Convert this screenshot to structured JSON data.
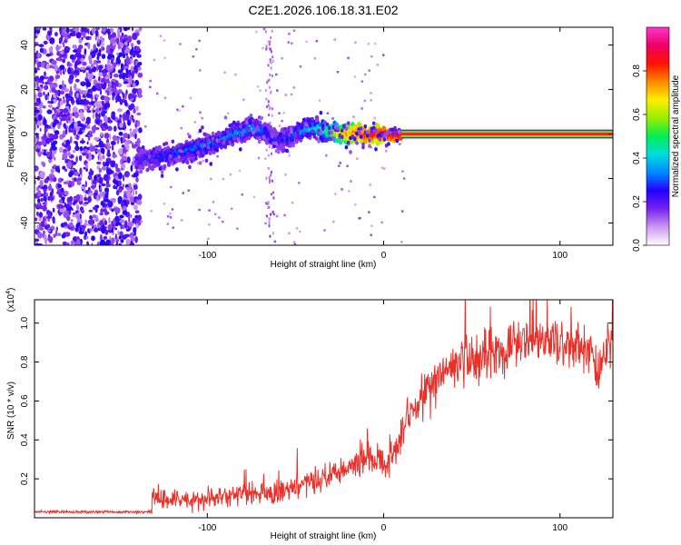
{
  "title": "C2E1.2026.106.18.31.E02",
  "chart_data": [
    {
      "type": "heatmap",
      "title": "C2E1.2026.106.18.31.E02",
      "xlabel": "Height of straight line (km)",
      "ylabel": "Frequency (Hz)",
      "xlim": [
        -198,
        130
      ],
      "ylim": [
        -50,
        48
      ],
      "xticks": [
        -100,
        0,
        100
      ],
      "xtick_labels": [
        "-100",
        "0",
        "100"
      ],
      "yticks": [
        -40,
        -20,
        0,
        20,
        40
      ],
      "ytick_labels": [
        "-40",
        "-20",
        "0",
        "20",
        "40"
      ],
      "colorbar": {
        "label": "Normalized spectral amplitude",
        "range": [
          0,
          1
        ],
        "ticks": [
          0.0,
          0.2,
          0.4,
          0.6,
          0.8
        ],
        "tick_labels": [
          "0.0",
          "0.2",
          "0.4",
          "0.6",
          "0.8"
        ],
        "colors": [
          "#ffffff",
          "#cc99ee",
          "#7722ee",
          "#2200ff",
          "#0088ff",
          "#00dddd",
          "#00ee55",
          "#99ee00",
          "#ffee00",
          "#ff8800",
          "#ff1100",
          "#ee0066",
          "#ff33cc"
        ]
      },
      "ridge": {
        "x": [
          -140,
          -130,
          -120,
          -110,
          -100,
          -90,
          -80,
          -75,
          -70,
          -65,
          -60,
          -55,
          -50,
          -45,
          -40,
          -35,
          -30,
          -25,
          -20,
          -15,
          -10,
          -5,
          0,
          5,
          10,
          20,
          40,
          60,
          80,
          100,
          120,
          130
        ],
        "y": [
          -12,
          -11,
          -9,
          -7,
          -5,
          -2,
          1,
          3,
          2,
          0,
          -3,
          -2,
          0,
          2,
          3,
          2,
          1,
          0,
          0,
          1,
          -1,
          0,
          0,
          -1,
          0,
          0,
          0,
          0,
          0,
          0,
          0,
          0
        ],
        "intensity": [
          0.3,
          0.35,
          0.35,
          0.38,
          0.38,
          0.4,
          0.42,
          0.45,
          0.4,
          0.35,
          0.3,
          0.35,
          0.38,
          0.42,
          0.45,
          0.5,
          0.6,
          0.7,
          0.8,
          0.85,
          0.9,
          0.9,
          0.92,
          0.92,
          0.95,
          0.95,
          0.95,
          0.95,
          0.95,
          0.95,
          0.95,
          0.95
        ]
      },
      "noise_region_x": [
        -198,
        -138
      ]
    },
    {
      "type": "line",
      "xlabel": "Height of straight line (km)",
      "ylabel": "SNR (10 * v/v)",
      "scale_label": "(x10",
      "scale_exp": "4",
      "scale_suffix": ")",
      "xlim": [
        -198,
        130
      ],
      "ylim": [
        0,
        1.12
      ],
      "xticks": [
        -100,
        0,
        100
      ],
      "xtick_labels": [
        "-100",
        "0",
        "100"
      ],
      "yticks": [
        0.2,
        0.4,
        0.6,
        0.8,
        1.0
      ],
      "ytick_labels": [
        "0.2",
        "0.4",
        "0.6",
        "0.8",
        "1.0"
      ],
      "series": [
        {
          "name": "SNR",
          "color": "#e8312a",
          "x": [
            -198,
            -180,
            -160,
            -140,
            -132,
            -131,
            -125,
            -115,
            -105,
            -95,
            -85,
            -75,
            -65,
            -55,
            -45,
            -35,
            -25,
            -15,
            -8,
            -2,
            3,
            8,
            15,
            20,
            25,
            30,
            35,
            40,
            50,
            60,
            70,
            80,
            90,
            100,
            110,
            118,
            122,
            126,
            130
          ],
          "y": [
            0.03,
            0.03,
            0.03,
            0.03,
            0.03,
            0.12,
            0.1,
            0.09,
            0.09,
            0.1,
            0.12,
            0.13,
            0.12,
            0.14,
            0.17,
            0.2,
            0.24,
            0.28,
            0.3,
            0.28,
            0.3,
            0.38,
            0.55,
            0.6,
            0.65,
            0.72,
            0.74,
            0.78,
            0.82,
            0.84,
            0.86,
            0.9,
            0.92,
            0.9,
            0.89,
            0.85,
            0.75,
            0.88,
            0.92
          ]
        }
      ]
    }
  ]
}
